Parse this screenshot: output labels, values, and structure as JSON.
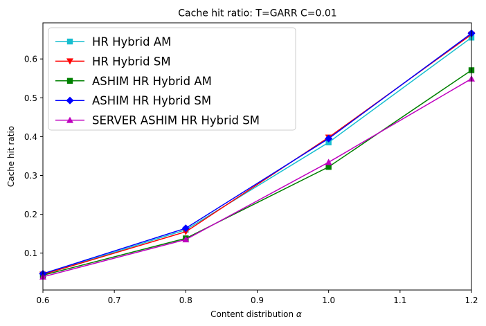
{
  "chart_data": {
    "type": "line",
    "title": "Cache hit ratio: T=GARR C=0.01",
    "xlabel": "Content distribution",
    "xlabel_symbol": "α",
    "ylabel": "Cache hit ratio",
    "xlim": [
      0.6,
      1.2
    ],
    "ylim": [
      0.005,
      0.693
    ],
    "xticks": [
      "0.6",
      "0.7",
      "0.8",
      "0.9",
      "1.0",
      "1.1",
      "1.2"
    ],
    "yticks": [
      "0.1",
      "0.2",
      "0.3",
      "0.4",
      "0.5",
      "0.6"
    ],
    "grid": false,
    "legend_position": "top-left",
    "x": [
      0.6,
      0.8,
      1.0,
      1.2
    ],
    "series": [
      {
        "name": "HR Hybrid AM",
        "color": "#17becf",
        "marker": "square",
        "values": [
          0.045,
          0.16,
          0.385,
          0.655
        ]
      },
      {
        "name": "HR Hybrid SM",
        "color": "#ff0000",
        "marker": "triangle-down",
        "values": [
          0.045,
          0.155,
          0.398,
          0.663
        ]
      },
      {
        "name": "ASHIM HR Hybrid AM",
        "color": "#008000",
        "marker": "square",
        "values": [
          0.043,
          0.138,
          0.322,
          0.571
        ]
      },
      {
        "name": "ASHIM HR Hybrid SM",
        "color": "#0000ff",
        "marker": "diamond",
        "values": [
          0.047,
          0.164,
          0.395,
          0.666
        ]
      },
      {
        "name": "SERVER ASHIM HR Hybrid SM",
        "color": "#bf00bf",
        "marker": "triangle-up",
        "values": [
          0.039,
          0.135,
          0.334,
          0.549
        ]
      }
    ]
  }
}
